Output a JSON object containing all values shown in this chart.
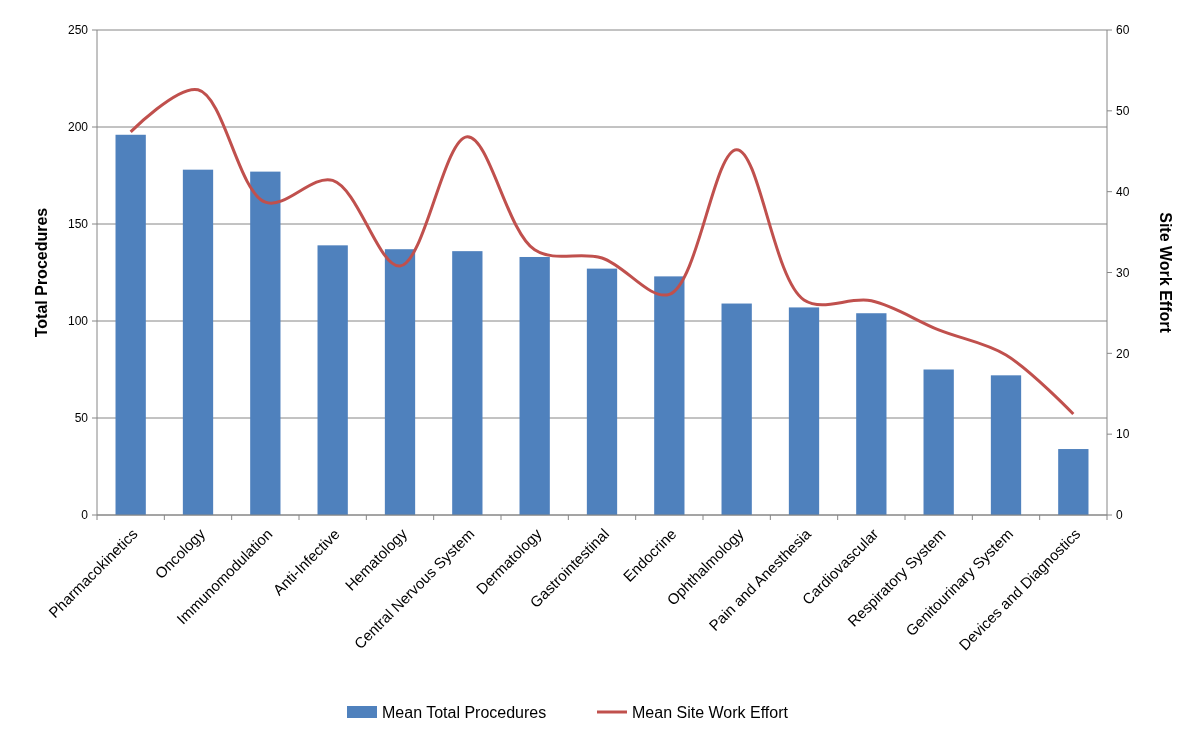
{
  "chart_data": {
    "type": "bar",
    "ylabel": "Total Procedures",
    "y2label": "Site Work Effort",
    "categories": [
      "Pharmacokinetics",
      "Oncology",
      "Immunomodulation",
      "Anti-Infective",
      "Hematology",
      "Central Nervous System",
      "Dermatology",
      "Gastrointestinal",
      "Endocrine",
      "Ophthalmology",
      "Pain and Anesthesia",
      "Cardiovascular",
      "Respiratory System",
      "Genitourinary System",
      "Devices and Diagnostics"
    ],
    "series": [
      {
        "name": "Mean Total Procedures",
        "color": "#4f81bd",
        "values": [
          196,
          178,
          177,
          139,
          137,
          136,
          133,
          127,
          123,
          109,
          107,
          104,
          75,
          72,
          34
        ]
      },
      {
        "name": "Mean Site Work Effort",
        "type": "line",
        "axis": "y2",
        "color": "#c0504d",
        "values": [
          47.4,
          52.6,
          38.7,
          41.4,
          30.8,
          46.8,
          32.8,
          31.8,
          27.3,
          45.2,
          26.6,
          26.5,
          22.9,
          19.8,
          12.5
        ]
      }
    ],
    "ylim": [
      0,
      250
    ],
    "yticks": [
      0,
      50,
      100,
      150,
      200,
      250
    ],
    "y2lim": [
      0,
      60
    ],
    "y2ticks": [
      0,
      10,
      20,
      30,
      40,
      50,
      60
    ],
    "grid": "y",
    "legend": "bottom",
    "marker": "none",
    "line_style": "solid"
  }
}
